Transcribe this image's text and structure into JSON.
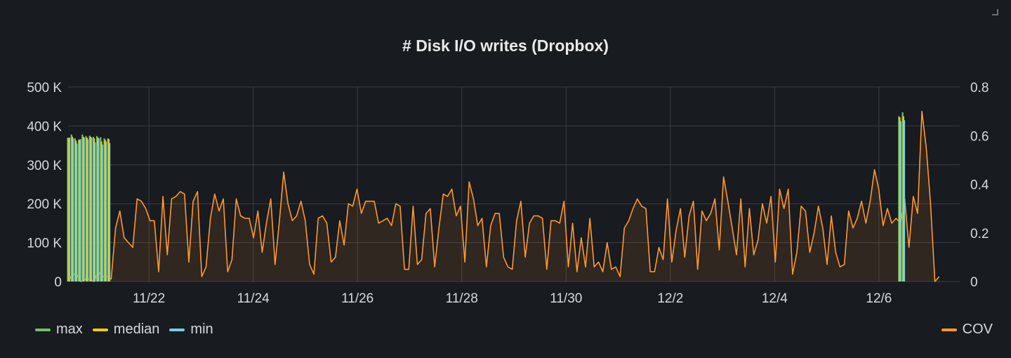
{
  "panel": {
    "title": "# Disk I/O writes (Dropbox)"
  },
  "colors": {
    "background": "#181b1f",
    "grid": "#3b3d42",
    "text": "#d8d9da",
    "max": "#73bf69",
    "median": "#f2cc0c",
    "min": "#73d0e0",
    "cov": "#ff9830"
  },
  "chart_data": {
    "type": "line",
    "title": "# Disk I/O writes (Dropbox)",
    "x_type": "date",
    "x_start": "2021-11-21",
    "x_end": "2021-12-07",
    "x_range_days": [
      -0.55,
      16.55
    ],
    "x_ticks": [
      {
        "label": "11/22",
        "day": 1
      },
      {
        "label": "11/24",
        "day": 3
      },
      {
        "label": "11/26",
        "day": 5
      },
      {
        "label": "11/28",
        "day": 7
      },
      {
        "label": "11/30",
        "day": 9
      },
      {
        "label": "12/2",
        "day": 11
      },
      {
        "label": "12/4",
        "day": 13
      },
      {
        "label": "12/6",
        "day": 15
      }
    ],
    "y_left": {
      "range": [
        0,
        500000
      ],
      "ticks": [
        {
          "value": 0,
          "label": "0"
        },
        {
          "value": 100000,
          "label": "100 K"
        },
        {
          "value": 200000,
          "label": "200 K"
        },
        {
          "value": 300000,
          "label": "300 K"
        },
        {
          "value": 400000,
          "label": "400 K"
        },
        {
          "value": 500000,
          "label": "500 K"
        }
      ]
    },
    "y_right": {
      "range": [
        0,
        0.8
      ],
      "ticks": [
        {
          "value": 0,
          "label": "0"
        },
        {
          "value": 0.2,
          "label": "0.2"
        },
        {
          "value": 0.4,
          "label": "0.4"
        },
        {
          "value": 0.6,
          "label": "0.6"
        },
        {
          "value": 0.8,
          "label": "0.8"
        }
      ]
    },
    "grid": true,
    "legend_left_placement": "bottom-left",
    "legend_right_placement": "bottom-right",
    "series_bars": [
      {
        "name": "max",
        "color": "#73bf69",
        "axis": "left",
        "x": [
          -0.54,
          -0.47,
          -0.4,
          -0.33,
          -0.26,
          -0.19,
          -0.12,
          -0.05,
          0.02,
          0.09,
          0.16,
          0.23,
          15.4,
          15.47
        ],
        "values": [
          370000,
          378000,
          368000,
          365000,
          378000,
          374000,
          375000,
          372000,
          374000,
          371000,
          368000,
          368000,
          425000,
          435000
        ]
      },
      {
        "name": "median",
        "color": "#f2cc0c",
        "axis": "left",
        "x": [
          -0.54,
          -0.47,
          -0.4,
          -0.33,
          -0.26,
          -0.19,
          -0.12,
          -0.05,
          0.02,
          0.09,
          0.16,
          0.23,
          15.4,
          15.47
        ],
        "values": [
          368000,
          372000,
          362000,
          364000,
          372000,
          370000,
          372000,
          368000,
          370000,
          360000,
          364000,
          366000,
          422000,
          425000
        ]
      },
      {
        "name": "min",
        "color": "#73d0e0",
        "axis": "left",
        "x": [
          -0.54,
          -0.47,
          -0.4,
          -0.33,
          -0.26,
          -0.19,
          -0.12,
          -0.05,
          0.02,
          0.09,
          0.16,
          0.23,
          15.4,
          15.47
        ],
        "values": [
          370000,
          368000,
          355000,
          366000,
          370000,
          366000,
          370000,
          358000,
          368000,
          352000,
          360000,
          356000,
          412000,
          415000
        ]
      }
    ],
    "series_line": {
      "name": "COV",
      "color": "#ff9830",
      "axis": "right",
      "x_start": -0.55,
      "x_step": 0.0827,
      "values": [
        0.0,
        0.03,
        0.03,
        0.0,
        0.01,
        0.01,
        0.0,
        0.04,
        0.02,
        0.02,
        0.01,
        0.22,
        0.29,
        0.18,
        0.16,
        0.14,
        0.34,
        0.33,
        0.3,
        0.25,
        0.25,
        0.04,
        0.35,
        0.11,
        0.34,
        0.35,
        0.37,
        0.36,
        0.08,
        0.33,
        0.37,
        0.02,
        0.06,
        0.26,
        0.36,
        0.29,
        0.34,
        0.04,
        0.09,
        0.34,
        0.27,
        0.26,
        0.26,
        0.18,
        0.29,
        0.12,
        0.24,
        0.34,
        0.07,
        0.25,
        0.45,
        0.32,
        0.25,
        0.27,
        0.33,
        0.25,
        0.07,
        0.03,
        0.26,
        0.27,
        0.24,
        0.08,
        0.1,
        0.25,
        0.15,
        0.32,
        0.31,
        0.38,
        0.28,
        0.33,
        0.33,
        0.33,
        0.24,
        0.25,
        0.26,
        0.23,
        0.32,
        0.31,
        0.05,
        0.05,
        0.31,
        0.07,
        0.09,
        0.28,
        0.3,
        0.06,
        0.22,
        0.36,
        0.35,
        0.38,
        0.27,
        0.31,
        0.08,
        0.41,
        0.34,
        0.23,
        0.26,
        0.06,
        0.23,
        0.28,
        0.28,
        0.1,
        0.06,
        0.05,
        0.25,
        0.33,
        0.1,
        0.24,
        0.27,
        0.27,
        0.26,
        0.05,
        0.25,
        0.25,
        0.24,
        0.33,
        0.06,
        0.24,
        0.04,
        0.18,
        0.06,
        0.26,
        0.06,
        0.08,
        0.04,
        0.16,
        0.05,
        0.06,
        0.02,
        0.22,
        0.25,
        0.3,
        0.34,
        0.31,
        0.3,
        0.04,
        0.04,
        0.14,
        0.09,
        0.34,
        0.08,
        0.21,
        0.3,
        0.1,
        0.27,
        0.33,
        0.05,
        0.29,
        0.25,
        0.28,
        0.34,
        0.13,
        0.43,
        0.33,
        0.22,
        0.11,
        0.34,
        0.06,
        0.3,
        0.11,
        0.17,
        0.32,
        0.24,
        0.35,
        0.08,
        0.38,
        0.3,
        0.38,
        0.03,
        0.12,
        0.31,
        0.29,
        0.12,
        0.2,
        0.31,
        0.22,
        0.07,
        0.27,
        0.12,
        0.06,
        0.07,
        0.29,
        0.22,
        0.26,
        0.33,
        0.24,
        0.33,
        0.46,
        0.38,
        0.23,
        0.3,
        0.24,
        0.26,
        0.24,
        0.34,
        0.14,
        0.35,
        0.28,
        0.7,
        0.55,
        0.32,
        0.0,
        0.02
      ]
    }
  },
  "legend": {
    "left": [
      {
        "label": "max",
        "color": "#73bf69"
      },
      {
        "label": "median",
        "color": "#f2cc0c"
      },
      {
        "label": "min",
        "color": "#73d0e0"
      }
    ],
    "right": [
      {
        "label": "COV",
        "color": "#ff9830"
      }
    ]
  }
}
